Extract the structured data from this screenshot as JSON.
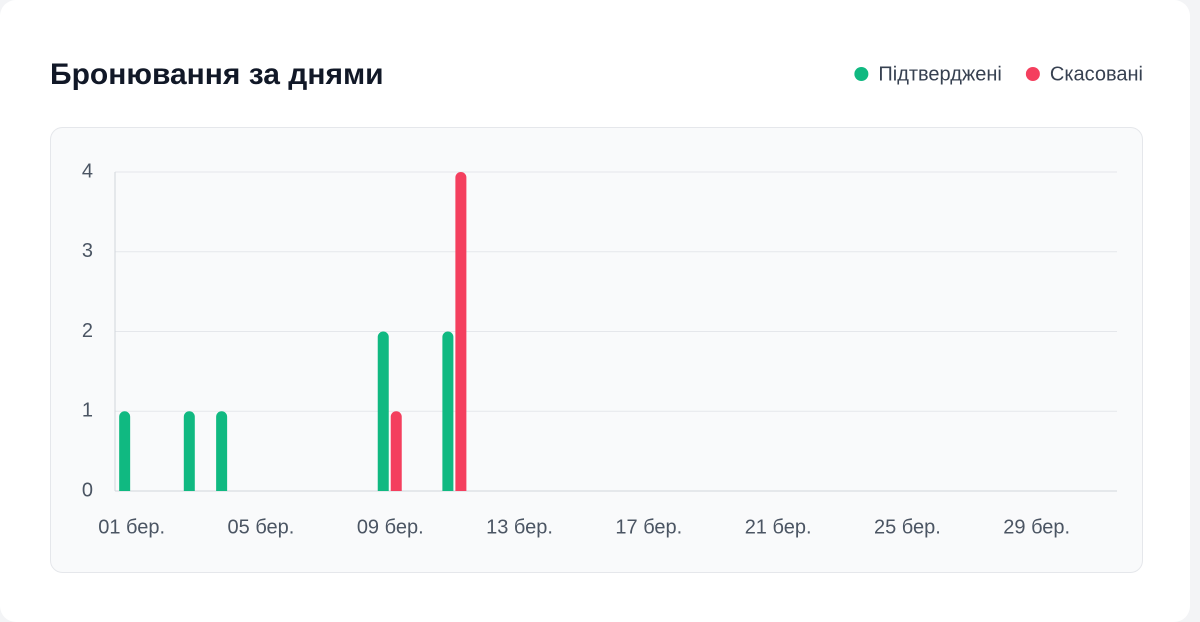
{
  "chart_data": {
    "type": "bar",
    "title": "Бронювання за днями",
    "categories": [
      "01 бер.",
      null,
      null,
      null,
      "05 бер.",
      null,
      null,
      null,
      "09 бер.",
      null,
      null,
      null,
      "13 бер.",
      null,
      null,
      null,
      "17 бер.",
      null,
      null,
      null,
      "21 бер.",
      null,
      null,
      null,
      "25 бер.",
      null,
      null,
      null,
      "29 бер.",
      null,
      null
    ],
    "series": [
      {
        "name": "Підтверджені",
        "color": "#10b981",
        "values": [
          1,
          0,
          1,
          1,
          0,
          0,
          0,
          0,
          2,
          0,
          2,
          0,
          0,
          0,
          0,
          0,
          0,
          0,
          0,
          0,
          0,
          0,
          0,
          0,
          0,
          0,
          0,
          0,
          0,
          0,
          0
        ]
      },
      {
        "name": "Скасовані",
        "color": "#f43f5e",
        "values": [
          0,
          0,
          0,
          0,
          0,
          0,
          0,
          0,
          1,
          0,
          4,
          0,
          0,
          0,
          0,
          0,
          0,
          0,
          0,
          0,
          0,
          0,
          0,
          0,
          0,
          0,
          0,
          0,
          0,
          0,
          0
        ]
      }
    ],
    "ylim": [
      0,
      4
    ],
    "yticks": [
      0,
      1,
      2,
      3,
      4
    ],
    "grid": true
  }
}
